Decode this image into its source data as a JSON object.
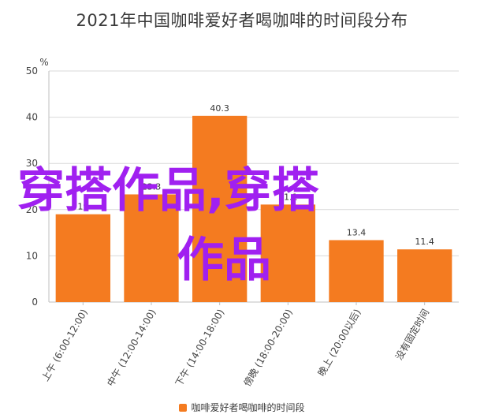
{
  "chart_data": {
    "type": "bar",
    "title": "2021年中国咖啡爱好者喝咖啡的时间段分布",
    "unit_label": "%",
    "categories": [
      "上午 (6:00-12:00)",
      "中午 (12:00-14:00)",
      "下午 (14:00-18:00)",
      "傍晚 (18:00-20:00)",
      "晚上 (20:00以后)",
      "没有固定时间"
    ],
    "series": [
      {
        "name": "咖啡爱好者喝咖啡的时间段",
        "values": [
          19,
          23.3,
          40.3,
          21.1,
          13.4,
          11.4
        ],
        "color": "#f47b20"
      }
    ],
    "value_labels": [
      "19",
      "23.3",
      "40.3",
      "21.1",
      "13.4",
      "11.4"
    ],
    "ylim": [
      0,
      50
    ],
    "yticks": [
      0,
      10,
      20,
      30,
      40,
      50
    ],
    "ytick_labels": [
      "0",
      "10",
      "20",
      "30",
      "40",
      "50"
    ],
    "grid": true,
    "legend_position": "bottom"
  },
  "watermark": {
    "line1": "穿搭作品,穿搭",
    "line2": "作品",
    "color": "#a020f0"
  }
}
